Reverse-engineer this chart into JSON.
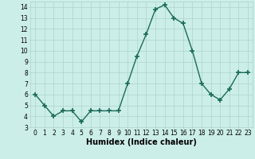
{
  "x": [
    0,
    1,
    2,
    3,
    4,
    5,
    6,
    7,
    8,
    9,
    10,
    11,
    12,
    13,
    14,
    15,
    16,
    17,
    18,
    19,
    20,
    21,
    22,
    23
  ],
  "y": [
    6,
    5,
    4,
    4.5,
    4.5,
    3.5,
    4.5,
    4.5,
    4.5,
    4.5,
    7,
    9.5,
    11.5,
    13.8,
    14.2,
    13,
    12.5,
    10,
    7,
    6,
    5.5,
    6.5,
    8,
    8
  ],
  "line_color": "#1a6b5a",
  "marker": "+",
  "markersize": 4,
  "markeredgewidth": 1.2,
  "linewidth": 1.0,
  "bg_color": "#cceee8",
  "grid_color": "#aad4cc",
  "xlabel": "Humidex (Indice chaleur)",
  "xlabel_fontsize": 7,
  "xlim": [
    -0.5,
    23.5
  ],
  "ylim": [
    3,
    14.5
  ],
  "yticks": [
    3,
    4,
    5,
    6,
    7,
    8,
    9,
    10,
    11,
    12,
    13,
    14
  ],
  "xticks": [
    0,
    1,
    2,
    3,
    4,
    5,
    6,
    7,
    8,
    9,
    10,
    11,
    12,
    13,
    14,
    15,
    16,
    17,
    18,
    19,
    20,
    21,
    22,
    23
  ],
  "tick_fontsize": 5.5
}
